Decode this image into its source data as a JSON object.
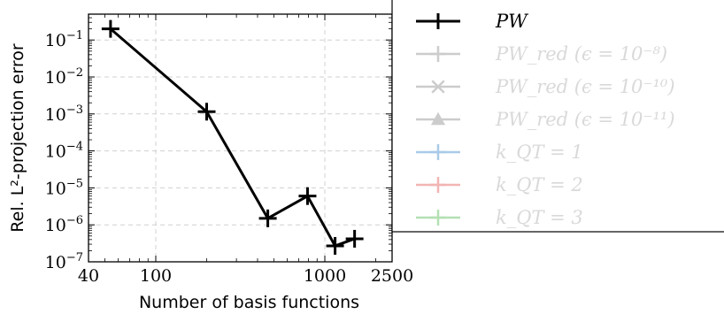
{
  "chart_data": {
    "type": "line",
    "x_scale": "log",
    "y_scale": "log",
    "xlim": [
      40,
      2500
    ],
    "ylim": [
      1e-07,
      0.5
    ],
    "grid": true,
    "xlabel": "Number of basis functions",
    "ylabel": "Rel. L²-projection error",
    "x_tick_labels": [
      "40",
      "100",
      "1000",
      "2500"
    ],
    "x_ticks": [
      40,
      100,
      1000,
      2500
    ],
    "y_ticks": [
      1e-07,
      1e-06,
      1e-05,
      0.0001,
      0.001,
      0.01,
      0.1
    ],
    "y_tick_labels": [
      {
        "base": "10",
        "exp": "−7"
      },
      {
        "base": "10",
        "exp": "−6"
      },
      {
        "base": "10",
        "exp": "−5"
      },
      {
        "base": "10",
        "exp": "−4"
      },
      {
        "base": "10",
        "exp": "−3"
      },
      {
        "base": "10",
        "exp": "−2"
      },
      {
        "base": "10",
        "exp": "−1"
      }
    ],
    "legend_position": "right",
    "series": [
      {
        "name": "PW",
        "color": "#000000",
        "marker": "plus",
        "x": [
          54,
          200,
          460,
          790,
          1150,
          1500
        ],
        "y": [
          0.2,
          0.00115,
          1.5e-06,
          6e-06,
          2.7e-07,
          4.2e-07
        ]
      }
    ],
    "legend": [
      {
        "label": "PW",
        "color": "#000000",
        "marker": "plus",
        "faded": false
      },
      {
        "label": "PW_red (ϵ = 10⁻⁸)",
        "color": "#cccccc",
        "marker": "plus",
        "faded": true
      },
      {
        "label": "PW_red (ϵ = 10⁻¹⁰)",
        "color": "#cccccc",
        "marker": "cross",
        "faded": true
      },
      {
        "label": "PW_red (ϵ = 10⁻¹¹)",
        "color": "#cccccc",
        "marker": "triangle",
        "faded": true
      },
      {
        "label": "k_QT = 1",
        "color": "#a9cbe8",
        "marker": "plus",
        "faded": true
      },
      {
        "label": "k_QT = 2",
        "color": "#f2b4b4",
        "marker": "plus",
        "faded": true
      },
      {
        "label": "k_QT = 3",
        "color": "#b4e0b4",
        "marker": "plus",
        "faded": true
      }
    ]
  }
}
